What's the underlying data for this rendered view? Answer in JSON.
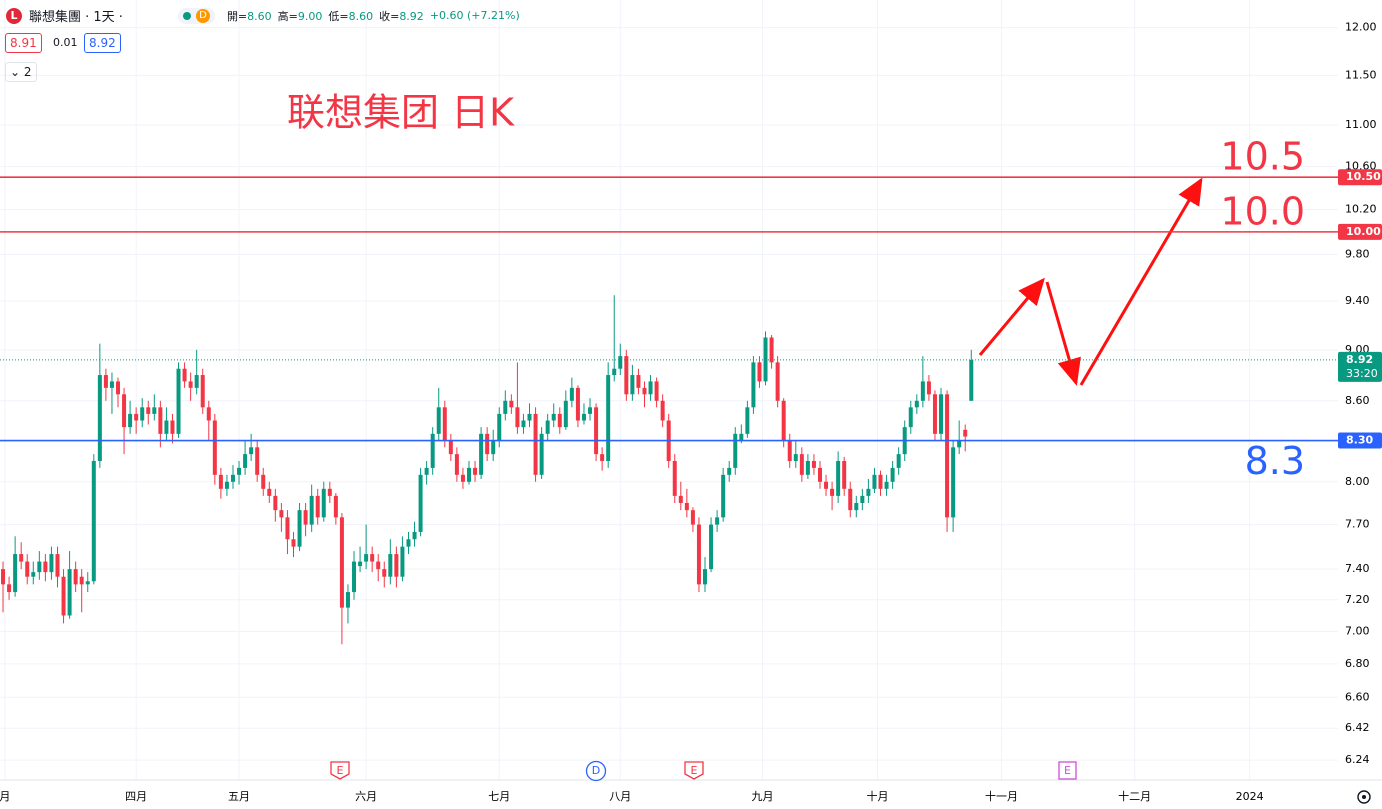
{
  "header": {
    "symbol_icon": "L",
    "symbol": "聯想集團 · 1天 ·",
    "badge": "D",
    "ohlc": [
      {
        "k": "開=",
        "v": "8.60"
      },
      {
        "k": "高=",
        "v": "9.00"
      },
      {
        "k": "低=",
        "v": "8.60"
      },
      {
        "k": "收=",
        "v": "8.92"
      }
    ],
    "change": "+0.60 (+7.21%)",
    "bid": "8.91",
    "spread": "0.01",
    "ask": "8.92",
    "indicators": "2"
  },
  "events": [
    "E",
    "D",
    "E",
    "E"
  ],
  "chart_data": {
    "type": "candlestick",
    "title": "联想集团 日K",
    "log_scale": true,
    "grid": true,
    "up_color": "#089981",
    "down_color": "#f23645",
    "ylim": [
      6.13,
      12.3
    ],
    "yticks": [
      {
        "value": 12,
        "label": "12.00"
      },
      {
        "value": 11.5,
        "label": "11.50"
      },
      {
        "value": 11,
        "label": "11.00"
      },
      {
        "value": 10.6,
        "label": "10.60"
      },
      {
        "value": 10.2,
        "label": "10.20"
      },
      {
        "value": 9.8,
        "label": "9.80"
      },
      {
        "value": 9.4,
        "label": "9.40"
      },
      {
        "value": 9,
        "label": "9.00"
      },
      {
        "value": 8.6,
        "label": "8.60"
      },
      {
        "value": 8,
        "label": "8.00"
      },
      {
        "value": 7.7,
        "label": "7.70"
      },
      {
        "value": 7.4,
        "label": "7.40"
      },
      {
        "value": 7.2,
        "label": "7.20"
      },
      {
        "value": 7,
        "label": "7.00"
      },
      {
        "value": 6.8,
        "label": "6.80"
      },
      {
        "value": 6.6,
        "label": "6.60"
      },
      {
        "value": 6.42,
        "label": "6.42"
      },
      {
        "value": 6.24,
        "label": "6.24"
      }
    ],
    "xlim": [
      -0.5,
      220.6
    ],
    "xticks": [
      {
        "value": 0.3,
        "label": "月"
      },
      {
        "value": 22,
        "label": "四月"
      },
      {
        "value": 39,
        "label": "五月"
      },
      {
        "value": 60,
        "label": "六月"
      },
      {
        "value": 82,
        "label": "七月"
      },
      {
        "value": 102,
        "label": "八月"
      },
      {
        "value": 125.5,
        "label": "九月"
      },
      {
        "value": 144.5,
        "label": "十月"
      },
      {
        "value": 165,
        "label": "十一月"
      },
      {
        "value": 187,
        "label": "十二月"
      },
      {
        "value": 206,
        "label": "2024"
      }
    ],
    "hlines": [
      {
        "value": 10.5,
        "label": "10.50",
        "note": "10.5",
        "color": "#f23645"
      },
      {
        "value": 10,
        "label": "10.00",
        "note": "10.0",
        "color": "#f23645"
      },
      {
        "value": 8.3,
        "label": "8.30",
        "note": "8.3",
        "color": "#2962ff"
      }
    ],
    "last_price": {
      "value": 8.92,
      "label": "8.92",
      "countdown": "33:20",
      "color": "#089981"
    },
    "candles": [
      [
        7.4,
        7.45,
        7.12,
        7.3
      ],
      [
        7.3,
        7.35,
        7.2,
        7.25
      ],
      [
        7.25,
        7.62,
        7.22,
        7.5
      ],
      [
        7.5,
        7.58,
        7.4,
        7.45
      ],
      [
        7.45,
        7.5,
        7.3,
        7.35
      ],
      [
        7.35,
        7.45,
        7.3,
        7.38
      ],
      [
        7.38,
        7.52,
        7.33,
        7.45
      ],
      [
        7.45,
        7.5,
        7.32,
        7.38
      ],
      [
        7.38,
        7.55,
        7.33,
        7.5
      ],
      [
        7.5,
        7.55,
        7.28,
        7.35
      ],
      [
        7.35,
        7.4,
        7.05,
        7.1
      ],
      [
        7.1,
        7.52,
        7.08,
        7.4
      ],
      [
        7.4,
        7.45,
        7.25,
        7.3
      ],
      [
        7.35,
        7.4,
        7.12,
        7.3
      ],
      [
        7.3,
        7.38,
        7.25,
        7.32
      ],
      [
        7.32,
        8.2,
        7.3,
        8.15
      ],
      [
        8.15,
        9.05,
        8.1,
        8.8
      ],
      [
        8.8,
        8.85,
        8.6,
        8.7
      ],
      [
        8.7,
        8.82,
        8.5,
        8.75
      ],
      [
        8.75,
        8.78,
        8.55,
        8.65
      ],
      [
        8.65,
        8.7,
        8.2,
        8.4
      ],
      [
        8.4,
        8.6,
        8.35,
        8.5
      ],
      [
        8.5,
        8.55,
        8.35,
        8.45
      ],
      [
        8.45,
        8.62,
        8.4,
        8.55
      ],
      [
        8.55,
        8.6,
        8.42,
        8.5
      ],
      [
        8.5,
        8.65,
        8.45,
        8.55
      ],
      [
        8.55,
        8.6,
        8.25,
        8.35
      ],
      [
        8.35,
        8.55,
        8.3,
        8.45
      ],
      [
        8.45,
        8.5,
        8.28,
        8.35
      ],
      [
        8.35,
        8.9,
        8.32,
        8.85
      ],
      [
        8.85,
        8.9,
        8.7,
        8.75
      ],
      [
        8.75,
        8.82,
        8.6,
        8.7
      ],
      [
        8.7,
        9.0,
        8.65,
        8.8
      ],
      [
        8.8,
        8.85,
        8.5,
        8.55
      ],
      [
        8.55,
        8.6,
        8.3,
        8.45
      ],
      [
        8.45,
        8.5,
        7.98,
        8.05
      ],
      [
        8.05,
        8.1,
        7.88,
        7.95
      ],
      [
        7.95,
        8.05,
        7.9,
        8.0
      ],
      [
        8.0,
        8.12,
        7.95,
        8.05
      ],
      [
        8.05,
        8.15,
        7.98,
        8.1
      ],
      [
        8.1,
        8.3,
        8.05,
        8.2
      ],
      [
        8.2,
        8.35,
        8.15,
        8.25
      ],
      [
        8.25,
        8.3,
        8.0,
        8.05
      ],
      [
        8.05,
        8.1,
        7.9,
        7.95
      ],
      [
        7.95,
        8.0,
        7.85,
        7.9
      ],
      [
        7.9,
        7.95,
        7.72,
        7.8
      ],
      [
        7.8,
        7.85,
        7.65,
        7.75
      ],
      [
        7.75,
        7.8,
        7.5,
        7.6
      ],
      [
        7.6,
        7.65,
        7.48,
        7.55
      ],
      [
        7.55,
        7.85,
        7.52,
        7.8
      ],
      [
        7.8,
        7.85,
        7.62,
        7.7
      ],
      [
        7.7,
        7.98,
        7.65,
        7.9
      ],
      [
        7.9,
        7.95,
        7.7,
        7.75
      ],
      [
        7.75,
        8.0,
        7.72,
        7.95
      ],
      [
        7.95,
        8.0,
        7.85,
        7.9
      ],
      [
        7.9,
        7.92,
        7.7,
        7.75
      ],
      [
        7.75,
        7.78,
        6.92,
        7.15
      ],
      [
        7.15,
        7.3,
        7.05,
        7.25
      ],
      [
        7.25,
        7.52,
        7.2,
        7.45
      ],
      [
        7.42,
        7.55,
        7.38,
        7.45
      ],
      [
        7.45,
        7.7,
        7.4,
        7.5
      ],
      [
        7.5,
        7.55,
        7.38,
        7.45
      ],
      [
        7.45,
        7.5,
        7.32,
        7.4
      ],
      [
        7.4,
        7.45,
        7.28,
        7.35
      ],
      [
        7.35,
        7.6,
        7.3,
        7.5
      ],
      [
        7.5,
        7.55,
        7.28,
        7.35
      ],
      [
        7.35,
        7.62,
        7.32,
        7.55
      ],
      [
        7.55,
        7.65,
        7.5,
        7.6
      ],
      [
        7.6,
        7.72,
        7.55,
        7.65
      ],
      [
        7.65,
        8.1,
        7.62,
        8.05
      ],
      [
        8.05,
        8.15,
        7.98,
        8.1
      ],
      [
        8.1,
        8.4,
        8.05,
        8.35
      ],
      [
        8.35,
        8.7,
        8.3,
        8.55
      ],
      [
        8.55,
        8.6,
        8.25,
        8.3
      ],
      [
        8.3,
        8.35,
        8.15,
        8.2
      ],
      [
        8.2,
        8.25,
        8.0,
        8.05
      ],
      [
        8.05,
        8.1,
        7.95,
        8.0
      ],
      [
        8.0,
        8.15,
        7.98,
        8.1
      ],
      [
        8.1,
        8.15,
        8.0,
        8.05
      ],
      [
        8.05,
        8.4,
        8.02,
        8.35
      ],
      [
        8.35,
        8.4,
        8.15,
        8.2
      ],
      [
        8.2,
        8.38,
        8.15,
        8.3
      ],
      [
        8.3,
        8.55,
        8.25,
        8.5
      ],
      [
        8.5,
        8.68,
        8.45,
        8.6
      ],
      [
        8.6,
        8.65,
        8.5,
        8.55
      ],
      [
        8.55,
        8.9,
        8.35,
        8.4
      ],
      [
        8.4,
        8.5,
        8.35,
        8.45
      ],
      [
        8.45,
        8.58,
        8.4,
        8.5
      ],
      [
        8.5,
        8.55,
        8.0,
        8.05
      ],
      [
        8.05,
        8.4,
        8.02,
        8.35
      ],
      [
        8.35,
        8.5,
        8.3,
        8.45
      ],
      [
        8.45,
        8.58,
        8.4,
        8.5
      ],
      [
        8.5,
        8.55,
        8.35,
        8.4
      ],
      [
        8.4,
        8.68,
        8.38,
        8.6
      ],
      [
        8.6,
        8.78,
        8.55,
        8.7
      ],
      [
        8.7,
        8.72,
        8.4,
        8.45
      ],
      [
        8.45,
        8.58,
        8.42,
        8.5
      ],
      [
        8.5,
        8.62,
        8.45,
        8.55
      ],
      [
        8.55,
        8.58,
        8.15,
        8.2
      ],
      [
        8.2,
        8.25,
        8.08,
        8.15
      ],
      [
        8.15,
        8.9,
        8.1,
        8.8
      ],
      [
        8.8,
        9.45,
        8.75,
        8.85
      ],
      [
        8.85,
        9.05,
        8.8,
        8.95
      ],
      [
        8.95,
        9.0,
        8.6,
        8.65
      ],
      [
        8.65,
        8.88,
        8.6,
        8.8
      ],
      [
        8.8,
        8.85,
        8.65,
        8.7
      ],
      [
        8.7,
        8.75,
        8.55,
        8.65
      ],
      [
        8.65,
        8.8,
        8.6,
        8.75
      ],
      [
        8.75,
        8.78,
        8.55,
        8.6
      ],
      [
        8.6,
        8.65,
        8.4,
        8.45
      ],
      [
        8.45,
        8.5,
        8.1,
        8.15
      ],
      [
        8.15,
        8.2,
        7.85,
        7.9
      ],
      [
        7.9,
        8.0,
        7.8,
        7.85
      ],
      [
        7.85,
        7.95,
        7.75,
        7.8
      ],
      [
        7.8,
        7.82,
        7.65,
        7.7
      ],
      [
        7.7,
        7.75,
        7.25,
        7.3
      ],
      [
        7.3,
        7.48,
        7.25,
        7.4
      ],
      [
        7.4,
        7.75,
        7.38,
        7.7
      ],
      [
        7.7,
        7.8,
        7.65,
        7.75
      ],
      [
        7.75,
        8.1,
        7.72,
        8.05
      ],
      [
        8.05,
        8.15,
        8.0,
        8.1
      ],
      [
        8.1,
        8.4,
        8.05,
        8.35
      ],
      [
        8.3,
        8.42,
        8.28,
        8.35
      ],
      [
        8.35,
        8.6,
        8.32,
        8.55
      ],
      [
        8.55,
        8.95,
        8.5,
        8.9
      ],
      [
        8.9,
        8.95,
        8.7,
        8.75
      ],
      [
        8.75,
        9.15,
        8.72,
        9.1
      ],
      [
        9.1,
        9.12,
        8.85,
        8.9
      ],
      [
        8.9,
        8.95,
        8.55,
        8.6
      ],
      [
        8.6,
        8.62,
        8.25,
        8.3
      ],
      [
        8.3,
        8.35,
        8.1,
        8.15
      ],
      [
        8.15,
        8.3,
        8.1,
        8.2
      ],
      [
        8.2,
        8.25,
        8.0,
        8.05
      ],
      [
        8.05,
        8.2,
        8.02,
        8.15
      ],
      [
        8.15,
        8.2,
        8.05,
        8.1
      ],
      [
        8.1,
        8.15,
        7.95,
        8.0
      ],
      [
        8.0,
        8.05,
        7.9,
        7.95
      ],
      [
        7.95,
        8.0,
        7.8,
        7.9
      ],
      [
        7.9,
        8.22,
        7.85,
        8.15
      ],
      [
        8.15,
        8.18,
        7.9,
        7.95
      ],
      [
        7.95,
        8.0,
        7.75,
        7.8
      ],
      [
        7.8,
        7.9,
        7.75,
        7.85
      ],
      [
        7.85,
        7.95,
        7.8,
        7.9
      ],
      [
        7.9,
        8.02,
        7.85,
        7.95
      ],
      [
        7.95,
        8.1,
        7.92,
        8.05
      ],
      [
        8.05,
        8.08,
        7.9,
        7.95
      ],
      [
        7.95,
        8.05,
        7.9,
        8.0
      ],
      [
        8.0,
        8.15,
        7.95,
        8.1
      ],
      [
        8.1,
        8.25,
        8.05,
        8.2
      ],
      [
        8.2,
        8.45,
        8.15,
        8.4
      ],
      [
        8.4,
        8.6,
        8.35,
        8.55
      ],
      [
        8.55,
        8.65,
        8.5,
        8.6
      ],
      [
        8.6,
        8.95,
        8.55,
        8.75
      ],
      [
        8.75,
        8.8,
        8.6,
        8.65
      ],
      [
        8.65,
        8.68,
        8.3,
        8.35
      ],
      [
        8.35,
        8.7,
        8.3,
        8.65
      ],
      [
        8.65,
        8.68,
        7.65,
        7.75
      ],
      [
        7.75,
        8.3,
        7.65,
        8.25
      ],
      [
        8.25,
        8.45,
        8.2,
        8.3
      ],
      [
        8.38,
        8.42,
        8.22,
        8.33
      ],
      [
        8.6,
        9.0,
        8.6,
        8.92
      ]
    ]
  }
}
